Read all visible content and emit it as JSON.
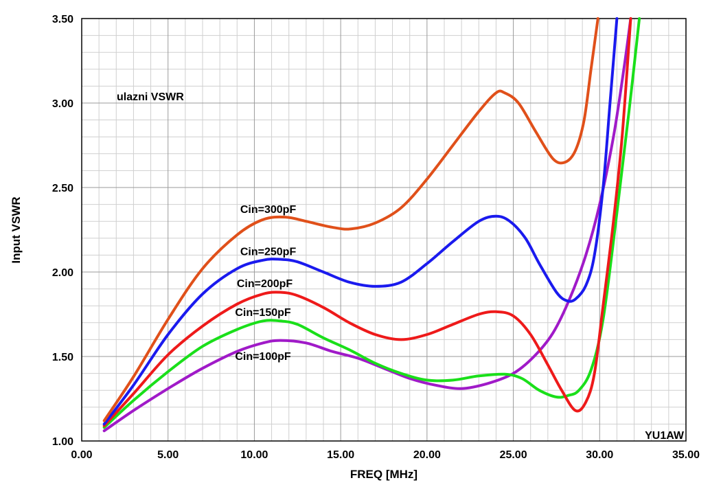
{
  "chart_data": {
    "type": "line",
    "title": "ulazni VSWR",
    "xlabel": "FREQ [MHz]",
    "ylabel": "Input VSWR",
    "watermark": "YU1AW",
    "xlim": [
      0,
      35
    ],
    "ylim": [
      1.0,
      3.5
    ],
    "x_ticks": [
      "0.00",
      "5.00",
      "10.00",
      "15.00",
      "20.00",
      "25.00",
      "30.00",
      "35.00"
    ],
    "y_ticks": [
      "1.00",
      "1.50",
      "2.00",
      "2.50",
      "3.00",
      "3.50"
    ],
    "grid": true,
    "series": [
      {
        "name": "Cin=300pF",
        "color": "#e0501a",
        "label_at": [
          10.8,
          2.35
        ],
        "points": [
          [
            1.3,
            1.12
          ],
          [
            3,
            1.38
          ],
          [
            5,
            1.72
          ],
          [
            7,
            2.02
          ],
          [
            9,
            2.22
          ],
          [
            10.5,
            2.31
          ],
          [
            11.8,
            2.325
          ],
          [
            13,
            2.3
          ],
          [
            14.5,
            2.265
          ],
          [
            15.6,
            2.255
          ],
          [
            17,
            2.29
          ],
          [
            18.5,
            2.38
          ],
          [
            20,
            2.55
          ],
          [
            21.5,
            2.75
          ],
          [
            23,
            2.95
          ],
          [
            24,
            3.06
          ],
          [
            24.5,
            3.06
          ],
          [
            25.3,
            3.0
          ],
          [
            26.3,
            2.83
          ],
          [
            27.3,
            2.67
          ],
          [
            28,
            2.65
          ],
          [
            28.6,
            2.72
          ],
          [
            29.1,
            2.9
          ],
          [
            29.5,
            3.2
          ],
          [
            29.9,
            3.5
          ]
        ]
      },
      {
        "name": "Cin=250pF",
        "color": "#1a1aee",
        "label_at": [
          10.8,
          2.1
        ],
        "points": [
          [
            1.3,
            1.1
          ],
          [
            3,
            1.33
          ],
          [
            5,
            1.63
          ],
          [
            7,
            1.87
          ],
          [
            9,
            2.02
          ],
          [
            10.5,
            2.07
          ],
          [
            11.5,
            2.075
          ],
          [
            12.5,
            2.06
          ],
          [
            14,
            2.0
          ],
          [
            15.5,
            1.94
          ],
          [
            17,
            1.915
          ],
          [
            18.5,
            1.94
          ],
          [
            20,
            2.05
          ],
          [
            21.5,
            2.18
          ],
          [
            23,
            2.3
          ],
          [
            24,
            2.33
          ],
          [
            24.8,
            2.3
          ],
          [
            25.7,
            2.2
          ],
          [
            26.5,
            2.05
          ],
          [
            27.5,
            1.88
          ],
          [
            28.1,
            1.83
          ],
          [
            28.6,
            1.84
          ],
          [
            29.2,
            1.92
          ],
          [
            29.7,
            2.1
          ],
          [
            30.2,
            2.5
          ],
          [
            30.6,
            3.0
          ],
          [
            31,
            3.5
          ]
        ]
      },
      {
        "name": "Cin=200pF",
        "color": "#ee1a1a",
        "label_at": [
          10.6,
          1.91
        ],
        "points": [
          [
            1.3,
            1.09
          ],
          [
            3,
            1.28
          ],
          [
            5,
            1.51
          ],
          [
            7,
            1.68
          ],
          [
            9,
            1.81
          ],
          [
            10.5,
            1.87
          ],
          [
            11.5,
            1.88
          ],
          [
            12.5,
            1.86
          ],
          [
            14,
            1.79
          ],
          [
            15.5,
            1.7
          ],
          [
            17,
            1.63
          ],
          [
            18.5,
            1.6
          ],
          [
            20,
            1.63
          ],
          [
            21.5,
            1.69
          ],
          [
            23,
            1.75
          ],
          [
            24,
            1.765
          ],
          [
            25,
            1.74
          ],
          [
            26,
            1.63
          ],
          [
            27,
            1.45
          ],
          [
            27.8,
            1.3
          ],
          [
            28.6,
            1.18
          ],
          [
            29.2,
            1.23
          ],
          [
            29.7,
            1.4
          ],
          [
            30.2,
            1.8
          ],
          [
            30.8,
            2.3
          ],
          [
            31.3,
            2.8
          ],
          [
            31.8,
            3.5
          ]
        ]
      },
      {
        "name": "Cin=150pF",
        "color": "#1adf1a",
        "label_at": [
          10.5,
          1.74
        ],
        "points": [
          [
            1.3,
            1.08
          ],
          [
            3,
            1.24
          ],
          [
            5,
            1.41
          ],
          [
            7,
            1.56
          ],
          [
            9,
            1.66
          ],
          [
            10.5,
            1.71
          ],
          [
            11.5,
            1.71
          ],
          [
            12.5,
            1.69
          ],
          [
            14,
            1.61
          ],
          [
            15.5,
            1.54
          ],
          [
            17,
            1.46
          ],
          [
            18.5,
            1.4
          ],
          [
            20,
            1.36
          ],
          [
            21.5,
            1.36
          ],
          [
            23,
            1.385
          ],
          [
            24.5,
            1.395
          ],
          [
            25.5,
            1.37
          ],
          [
            26.5,
            1.3
          ],
          [
            27.5,
            1.26
          ],
          [
            28.2,
            1.27
          ],
          [
            28.8,
            1.3
          ],
          [
            29.5,
            1.42
          ],
          [
            30.2,
            1.72
          ],
          [
            31,
            2.35
          ],
          [
            31.7,
            2.95
          ],
          [
            32.3,
            3.5
          ]
        ]
      },
      {
        "name": "Cin=100pF",
        "color": "#a01ac8",
        "label_at": [
          10.5,
          1.48
        ],
        "points": [
          [
            1.3,
            1.06
          ],
          [
            3,
            1.18
          ],
          [
            5,
            1.31
          ],
          [
            7,
            1.43
          ],
          [
            9,
            1.53
          ],
          [
            10.5,
            1.58
          ],
          [
            11.5,
            1.595
          ],
          [
            13,
            1.58
          ],
          [
            14.5,
            1.53
          ],
          [
            16,
            1.49
          ],
          [
            17.5,
            1.43
          ],
          [
            19,
            1.37
          ],
          [
            20.5,
            1.33
          ],
          [
            22,
            1.31
          ],
          [
            23.5,
            1.34
          ],
          [
            25,
            1.4
          ],
          [
            26.2,
            1.5
          ],
          [
            27.3,
            1.64
          ],
          [
            28.3,
            1.85
          ],
          [
            29.2,
            2.1
          ],
          [
            30,
            2.4
          ],
          [
            30.8,
            2.8
          ],
          [
            31.4,
            3.2
          ],
          [
            31.8,
            3.5
          ]
        ]
      }
    ]
  }
}
